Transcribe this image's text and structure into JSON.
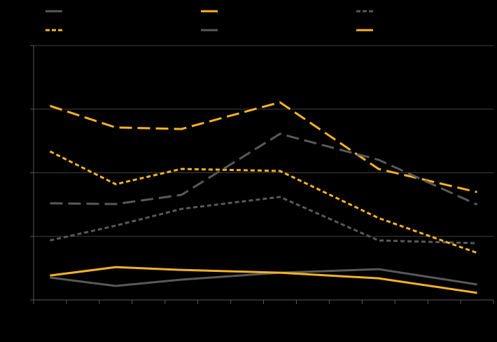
{
  "chart_data": {
    "type": "line",
    "x": [
      0.5,
      2.5,
      4.5,
      7.5,
      10.5,
      13.5
    ],
    "xlim": [
      0,
      14
    ],
    "xticks": [
      0,
      1,
      2,
      3,
      4,
      5,
      6,
      7,
      8,
      9,
      10,
      11,
      12,
      13,
      14
    ],
    "ylim": [
      0,
      100
    ],
    "yticks": [
      0,
      25,
      50,
      75,
      100
    ],
    "grid": true,
    "series": [
      {
        "color": "#595959",
        "dash": "solid",
        "values": [
          8.8,
          5.5,
          8.0,
          10.7,
          12.1,
          6.1
        ]
      },
      {
        "color": "#f5b324",
        "dash": "long",
        "values": [
          76.3,
          67.8,
          67.2,
          77.7,
          51.5,
          42.4
        ]
      },
      {
        "color": "#595959",
        "dash": "short",
        "values": [
          23.4,
          29.2,
          35.8,
          40.5,
          23.4,
          22.3
        ]
      },
      {
        "color": "#f5b324",
        "dash": "short",
        "values": [
          58.4,
          45.5,
          51.5,
          50.7,
          32.2,
          18.5
        ]
      },
      {
        "color": "#595959",
        "dash": "long",
        "values": [
          38.0,
          37.7,
          41.3,
          65.3,
          55.1,
          37.5
        ]
      },
      {
        "color": "#f5b324",
        "dash": "solid",
        "values": [
          9.6,
          12.9,
          11.8,
          10.7,
          8.5,
          2.8
        ]
      }
    ]
  }
}
